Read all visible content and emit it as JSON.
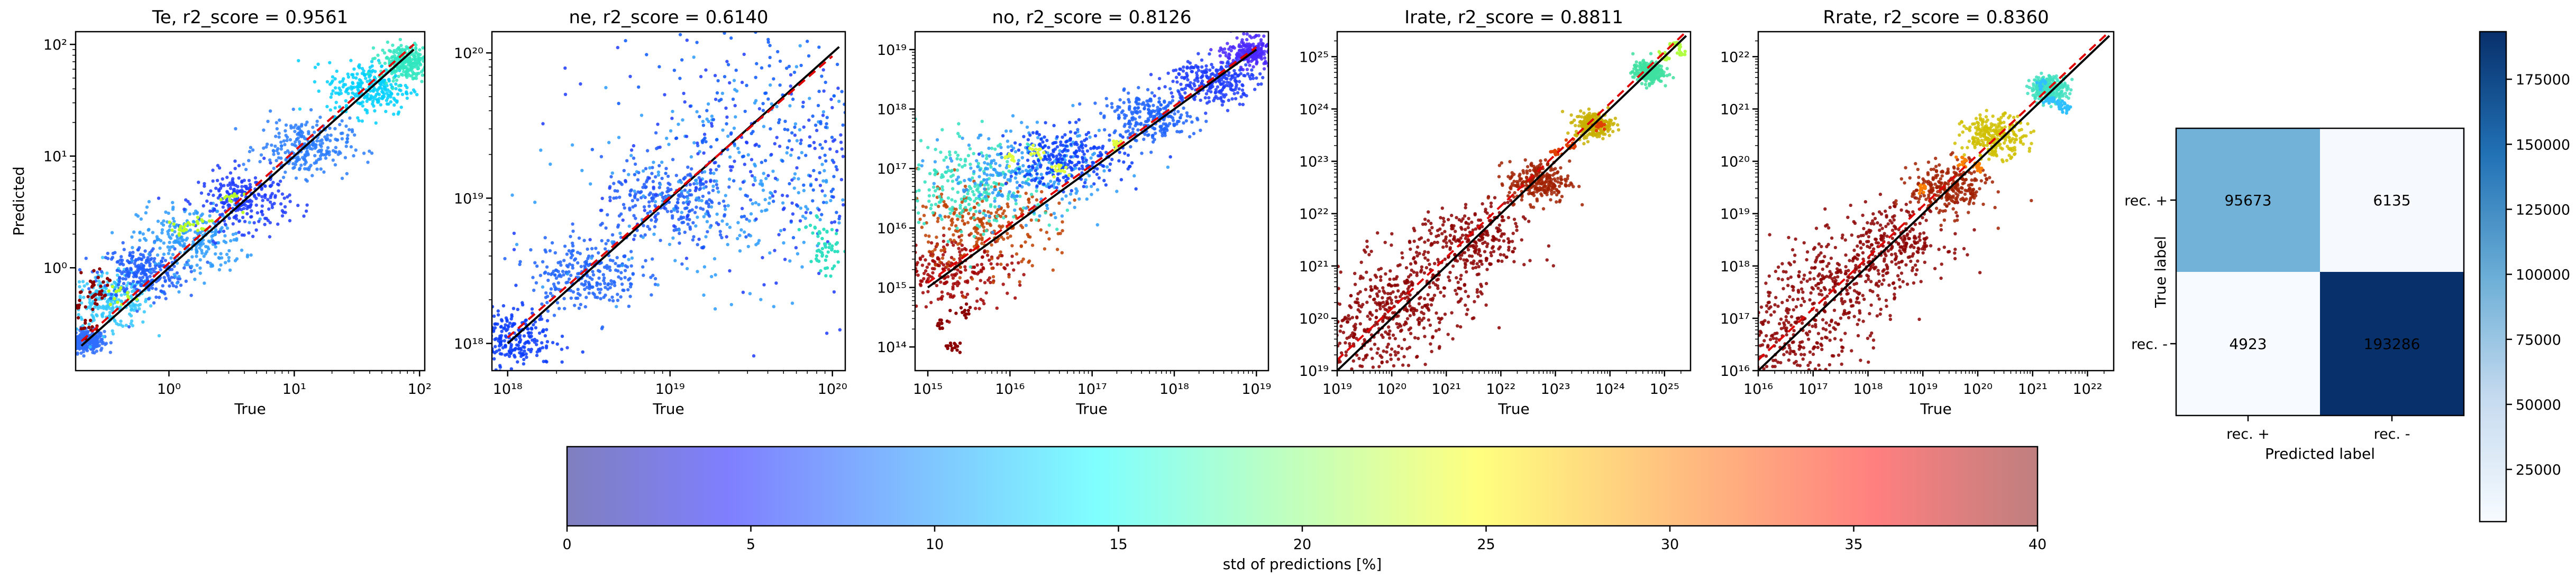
{
  "chart_data": [
    {
      "type": "scatter",
      "title": "Te, r2_score = 0.9561",
      "xlabel": "True",
      "ylabel": "Predicted",
      "xscale": "log",
      "yscale": "log",
      "xlim": [
        0.18,
        110
      ],
      "ylim": [
        0.12,
        130
      ],
      "xticks": [
        {
          "v": 1,
          "label": "10⁰"
        },
        {
          "v": 10,
          "label": "10¹"
        },
        {
          "v": 100,
          "label": "10²"
        }
      ],
      "yticks": [
        {
          "v": 1,
          "label": "10⁰"
        },
        {
          "v": 10,
          "label": "10¹"
        },
        {
          "v": 100,
          "label": "10²"
        }
      ],
      "ideal_line": [
        [
          0.2,
          0.2
        ],
        [
          90,
          90
        ]
      ],
      "fit_line": [
        [
          0.2,
          0.22
        ],
        [
          90,
          100
        ]
      ],
      "cloud": [
        {
          "x": 0.22,
          "y": 0.22,
          "spread": 0.05,
          "color": "#2f6dff"
        },
        {
          "x": 0.35,
          "y": 0.5,
          "spread": 0.12,
          "color": "#33c8ff"
        },
        {
          "x": 0.6,
          "y": 0.9,
          "spread": 0.12,
          "color": "#1f5cff"
        },
        {
          "x": 1.5,
          "y": 1.8,
          "spread": 0.15,
          "color": "#2b9bff"
        },
        {
          "x": 4,
          "y": 4,
          "spread": 0.13,
          "color": "#1d3bff"
        },
        {
          "x": 12,
          "y": 12,
          "spread": 0.13,
          "color": "#2a7dff"
        },
        {
          "x": 40,
          "y": 40,
          "spread": 0.12,
          "color": "#00d0ff"
        },
        {
          "x": 80,
          "y": 70,
          "spread": 0.08,
          "color": "#2fe6c0"
        }
      ],
      "series": [
        {
          "name": "",
          "points": [
            [
              0.21,
              0.5
            ],
            [
              0.21,
              0.3
            ],
            [
              0.25,
              0.6
            ],
            [
              0.3,
              0.75
            ]
          ],
          "color": "#8b0000"
        },
        {
          "name": "",
          "points": [
            [
              0.4,
              0.55
            ],
            [
              1.2,
              2.2
            ],
            [
              1.8,
              2.5
            ],
            [
              3,
              4.2
            ]
          ],
          "color": "#b8ff2a"
        }
      ]
    },
    {
      "type": "scatter",
      "title": "ne, r2_score = 0.6140",
      "xlabel": "True",
      "ylabel": "",
      "xscale": "log",
      "yscale": "log",
      "xlim": [
        8e+17,
        1.2e+20
      ],
      "ylim": [
        6.5e+17,
        1.4e+20
      ],
      "xticks": [
        {
          "v": 1e+18,
          "label": "10¹⁸"
        },
        {
          "v": 1e+19,
          "label": "10¹⁹"
        },
        {
          "v": 1e+20,
          "label": "10²⁰"
        }
      ],
      "yticks": [
        {
          "v": 1e+18,
          "label": "10¹⁸"
        },
        {
          "v": 1e+19,
          "label": "10¹⁹"
        },
        {
          "v": 1e+20,
          "label": "10²⁰"
        }
      ],
      "ideal_line": [
        [
          1e+18,
          1e+18
        ],
        [
          1.1e+20,
          1.1e+20
        ]
      ],
      "fit_line": [
        [
          1e+18,
          1.1e+18
        ],
        [
          1e+20,
          9.5e+19
        ]
      ],
      "cloud": [
        {
          "x": 1e+18,
          "y": 1.1e+18,
          "spread": 0.1,
          "color": "#0a3cff"
        },
        {
          "x": 3e+18,
          "y": 3e+18,
          "spread": 0.12,
          "color": "#1e64ff"
        },
        {
          "x": 1e+19,
          "y": 9e+18,
          "spread": 0.15,
          "color": "#1f5cff"
        },
        {
          "x": 2.5e+19,
          "y": 1.2e+19,
          "spread": 0.35,
          "color": "#2a9bff"
        },
        {
          "x": 6e+19,
          "y": 1.5e+19,
          "spread": 0.45,
          "color": "#1d3bff"
        },
        {
          "x": 9e+19,
          "y": 4e+19,
          "spread": 0.4,
          "color": "#0b58ff"
        }
      ],
      "series": [
        {
          "name": "",
          "points": [
            [
              9.8e+19,
              4e+18
            ],
            [
              9.5e+19,
              5e+18
            ],
            [
              9e+19,
              3.8e+18
            ],
            [
              8e+19,
              6e+18
            ]
          ],
          "color": "#30e0c0"
        }
      ]
    },
    {
      "type": "scatter",
      "title": "no, r2_score = 0.8126",
      "xlabel": "True",
      "ylabel": "",
      "xscale": "log",
      "yscale": "log",
      "xlim": [
        700000000000000.0,
        1.4e+19
      ],
      "ylim": [
        40000000000000.0,
        2e+19
      ],
      "xticks": [
        {
          "v": 1000000000000000.0,
          "label": "10¹⁵"
        },
        {
          "v": 1e+16,
          "label": "10¹⁶"
        },
        {
          "v": 1e+17,
          "label": "10¹⁷"
        },
        {
          "v": 1e+18,
          "label": "10¹⁸"
        },
        {
          "v": 1e+19,
          "label": "10¹⁹"
        }
      ],
      "yticks": [
        {
          "v": 100000000000000.0,
          "label": "10¹⁴"
        },
        {
          "v": 1000000000000000.0,
          "label": "10¹⁵"
        },
        {
          "v": 1e+16,
          "label": "10¹⁶"
        },
        {
          "v": 1e+17,
          "label": "10¹⁷"
        },
        {
          "v": 1e+18,
          "label": "10¹⁸"
        },
        {
          "v": 1e+19,
          "label": "10¹⁹"
        }
      ],
      "ideal_line": [
        [
          1000000000000000.0,
          1000000000000000.0
        ],
        [
          1e+19,
          1e+19
        ]
      ],
      "fit_line": [
        [
          1000000000000000.0,
          1200000000000000.0
        ],
        [
          1e+19,
          1.1e+19
        ]
      ],
      "cloud": [
        {
          "x": 1500000000000000.0,
          "y": 2000000000000000.0,
          "spread": 0.3,
          "color": "#a00000"
        },
        {
          "x": 4000000000000000.0,
          "y": 1e+16,
          "spread": 0.35,
          "color": "#c04000"
        },
        {
          "x": 3000000000000000.0,
          "y": 5e+16,
          "spread": 0.4,
          "color": "#30e0c0"
        },
        {
          "x": 1.5e+16,
          "y": 8e+16,
          "spread": 0.35,
          "color": "#2a9bff"
        },
        {
          "x": 5e+16,
          "y": 1.5e+17,
          "spread": 0.25,
          "color": "#0a3cff"
        },
        {
          "x": 5e+17,
          "y": 7e+17,
          "spread": 0.2,
          "color": "#1e64ff"
        },
        {
          "x": 3e+18,
          "y": 3e+18,
          "spread": 0.2,
          "color": "#1d3bff"
        },
        {
          "x": 9e+18,
          "y": 9e+18,
          "spread": 0.12,
          "color": "#4a28ff"
        }
      ],
      "series": [
        {
          "name": "",
          "points": [
            [
              2000000000000000.0,
              100000000000000.0
            ],
            [
              1500000000000000.0,
              250000000000000.0
            ],
            [
              3000000000000000.0,
              400000000000000.0
            ]
          ],
          "color": "#8b0000"
        },
        {
          "name": "",
          "points": [
            [
              2e+16,
              2e+17
            ],
            [
              4e+16,
              1e+17
            ],
            [
              1e+16,
              1.5e+17
            ],
            [
              2e+17,
              2.5e+17
            ]
          ],
          "color": "#e0ff40"
        }
      ]
    },
    {
      "type": "scatter",
      "title": "Irate, r2_score = 0.8811",
      "xlabel": "True",
      "ylabel": "",
      "xscale": "log",
      "yscale": "log",
      "xlim": [
        1e+19,
        3e+25
      ],
      "ylim": [
        1e+19,
        3e+25
      ],
      "xticks": [
        {
          "v": 1e+19,
          "label": "10¹⁹"
        },
        {
          "v": 1e+20,
          "label": "10²⁰"
        },
        {
          "v": 1e+21,
          "label": "10²¹"
        },
        {
          "v": 1e+22,
          "label": "10²²"
        },
        {
          "v": 1e+23,
          "label": "10²³"
        },
        {
          "v": 1e+24,
          "label": "10²⁴"
        },
        {
          "v": 1e+25,
          "label": "10²⁵"
        }
      ],
      "yticks": [
        {
          "v": 1e+19,
          "label": "10¹⁹"
        },
        {
          "v": 1e+20,
          "label": "10²⁰"
        },
        {
          "v": 1e+21,
          "label": "10²¹"
        },
        {
          "v": 1e+22,
          "label": "10²²"
        },
        {
          "v": 1e+23,
          "label": "10²³"
        },
        {
          "v": 1e+24,
          "label": "10²⁴"
        },
        {
          "v": 1e+25,
          "label": "10²⁵"
        }
      ],
      "ideal_line": [
        [
          1e+19,
          1e+19
        ],
        [
          2.5e+25,
          2.5e+25
        ]
      ],
      "fit_line": [
        [
          1e+19,
          1.6e+19
        ],
        [
          2.5e+25,
          3e+25
        ]
      ],
      "cloud": [
        {
          "x": 3e+19,
          "y": 5e+19,
          "spread": 0.45,
          "color": "#8b0000"
        },
        {
          "x": 3e+20,
          "y": 4e+20,
          "spread": 0.45,
          "color": "#8b0000"
        },
        {
          "x": 3e+21,
          "y": 3e+21,
          "spread": 0.35,
          "color": "#8b0000"
        },
        {
          "x": 5e+22,
          "y": 4e+22,
          "spread": 0.2,
          "color": "#a02000"
        },
        {
          "x": 5e+23,
          "y": 5e+23,
          "spread": 0.12,
          "color": "#c8b000"
        },
        {
          "x": 5e+24,
          "y": 5e+24,
          "spread": 0.1,
          "color": "#40e0a0"
        }
      ],
      "series": [
        {
          "name": "",
          "points": [
            [
              1e+23,
              1.5e+23
            ],
            [
              2e+23,
              2e+23
            ],
            [
              6e+23,
              5e+23
            ]
          ],
          "color": "#e04000"
        },
        {
          "name": "",
          "points": [
            [
              1e+25,
              1e+25
            ],
            [
              1.5e+25,
              1.8e+25
            ],
            [
              2e+25,
              1.2e+25
            ]
          ],
          "color": "#b0ff40"
        }
      ]
    },
    {
      "type": "scatter",
      "title": "Rrate, r2_score = 0.8360",
      "xlabel": "True",
      "ylabel": "",
      "xscale": "log",
      "yscale": "log",
      "xlim": [
        1e+16,
        3e+22
      ],
      "ylim": [
        1e+16,
        3e+22
      ],
      "xticks": [
        {
          "v": 1e+16,
          "label": "10¹⁶"
        },
        {
          "v": 1e+17,
          "label": "10¹⁷"
        },
        {
          "v": 1e+18,
          "label": "10¹⁸"
        },
        {
          "v": 1e+19,
          "label": "10¹⁹"
        },
        {
          "v": 1e+20,
          "label": "10²⁰"
        },
        {
          "v": 1e+21,
          "label": "10²¹"
        },
        {
          "v": 1e+22,
          "label": "10²²"
        }
      ],
      "yticks": [
        {
          "v": 1e+16,
          "label": "10¹⁶"
        },
        {
          "v": 1e+17,
          "label": "10¹⁷"
        },
        {
          "v": 1e+18,
          "label": "10¹⁸"
        },
        {
          "v": 1e+19,
          "label": "10¹⁹"
        },
        {
          "v": 1e+20,
          "label": "10²⁰"
        },
        {
          "v": 1e+21,
          "label": "10²¹"
        },
        {
          "v": 1e+22,
          "label": "10²²"
        }
      ],
      "ideal_line": [
        [
          1e+16,
          1e+16
        ],
        [
          2.5e+22,
          2.5e+22
        ]
      ],
      "fit_line": [
        [
          1e+16,
          1.6e+16
        ],
        [
          2.5e+22,
          3e+22
        ]
      ],
      "cloud": [
        {
          "x": 3e+16,
          "y": 5e+16,
          "spread": 0.45,
          "color": "#8b0000"
        },
        {
          "x": 3e+17,
          "y": 4e+17,
          "spread": 0.45,
          "color": "#8b0000"
        },
        {
          "x": 3e+18,
          "y": 3e+18,
          "spread": 0.35,
          "color": "#8b0000"
        },
        {
          "x": 3e+19,
          "y": 3e+19,
          "spread": 0.25,
          "color": "#a02000"
        },
        {
          "x": 2e+20,
          "y": 3e+20,
          "spread": 0.2,
          "color": "#d0c000"
        },
        {
          "x": 2e+21,
          "y": 2.5e+21,
          "spread": 0.12,
          "color": "#40e0c0"
        }
      ],
      "series": [
        {
          "name": "",
          "points": [
            [
              1e+19,
              3e+19
            ],
            [
              5e+19,
              1e+20
            ],
            [
              1e+20,
              8e+19
            ]
          ],
          "color": "#ff8000"
        },
        {
          "name": "",
          "points": [
            [
              2e+21,
              1.5e+21
            ],
            [
              4e+21,
              1e+21
            ],
            [
              3e+21,
              1.2e+21
            ],
            [
              1.5e+21,
              3e+21
            ]
          ],
          "color": "#30c0ff"
        }
      ]
    },
    {
      "type": "heatmap",
      "title": "",
      "xlabel": "Predicted label",
      "ylabel": "True label",
      "x_categories": [
        "rec. +",
        "rec. -"
      ],
      "y_categories": [
        "rec. +",
        "rec. -"
      ],
      "matrix": [
        [
          95673,
          6135
        ],
        [
          4923,
          193286
        ]
      ],
      "colorscale": "Blues",
      "colorbar": {
        "min": 4923,
        "max": 193286,
        "ticks": [
          25000,
          50000,
          75000,
          100000,
          125000,
          150000,
          175000
        ]
      }
    },
    {
      "type": "colorbar",
      "xlabel": "std of predictions [%]",
      "range": [
        0,
        40
      ],
      "ticks": [
        0,
        5,
        10,
        15,
        20,
        25,
        30,
        35,
        40
      ],
      "colormap": "jet",
      "alpha": 0.5
    }
  ]
}
